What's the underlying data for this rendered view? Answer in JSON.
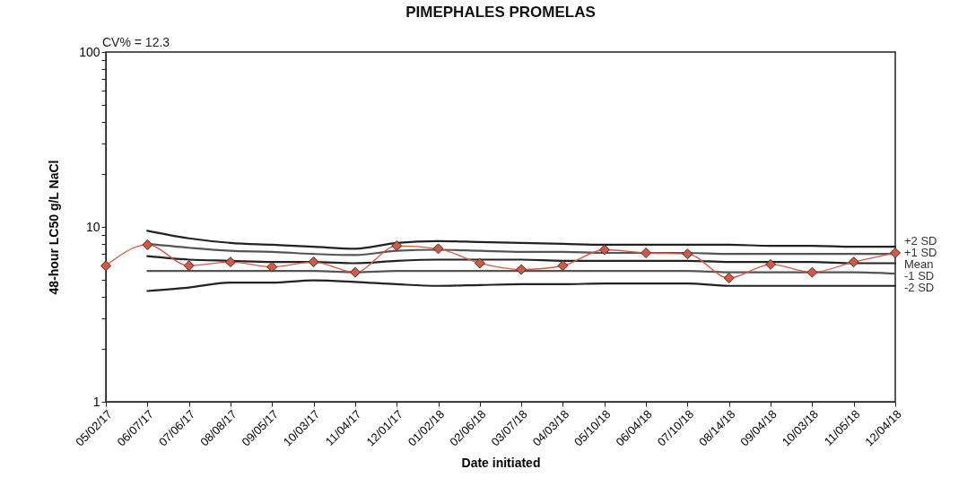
{
  "chart_data": {
    "type": "line",
    "title": "PIMEPHALES PROMELAS",
    "xlabel": "Date initiated",
    "ylabel": "48-hour LC50 g/L NaCl",
    "annotations": [
      "CV% = 12.3"
    ],
    "categories": [
      "05/02/17",
      "06/07/17",
      "07/06/17",
      "08/08/17",
      "09/05/17",
      "10/03/17",
      "11/04/17",
      "12/01/17",
      "01/02/18",
      "02/06/18",
      "03/07/18",
      "04/03/18",
      "05/10/18",
      "06/04/18",
      "07/10/18",
      "08/14/18",
      "09/04/18",
      "10/03/18",
      "11/05/18",
      "12/04/18"
    ],
    "log": "y",
    "ylim": [
      1,
      100
    ],
    "yticks": [
      1,
      {
        "value": 2,
        "label": null
      },
      {
        "value": 3,
        "label": null
      },
      {
        "value": 4,
        "label": null
      },
      {
        "value": 5,
        "label": null
      },
      {
        "value": 6,
        "label": null
      },
      {
        "value": 7,
        "label": null
      },
      {
        "value": 8,
        "label": null
      },
      {
        "value": 9,
        "label": null
      },
      10,
      {
        "value": 20,
        "label": null
      },
      {
        "value": 30,
        "label": null
      },
      {
        "value": 40,
        "label": null
      },
      {
        "value": 50,
        "label": null
      },
      {
        "value": 60,
        "label": null
      },
      {
        "value": 70,
        "label": null
      },
      {
        "value": 80,
        "label": null
      },
      {
        "value": 90,
        "label": null
      },
      100
    ],
    "series": [
      {
        "name": "+2 SD",
        "color": "#222222",
        "marker": "none",
        "values": [
          null,
          9.5,
          8.6,
          8.1,
          7.9,
          7.7,
          7.5,
          8.1,
          8.3,
          8.2,
          8.1,
          8.0,
          7.9,
          7.9,
          7.9,
          7.9,
          7.8,
          7.8,
          7.7,
          7.7
        ]
      },
      {
        "name": "+1 SD",
        "color": "#555555",
        "marker": "none",
        "values": [
          null,
          8.0,
          7.6,
          7.3,
          7.2,
          7.0,
          6.9,
          7.3,
          7.4,
          7.3,
          7.2,
          7.2,
          7.1,
          7.1,
          7.1,
          7.0,
          7.0,
          7.0,
          7.0,
          7.0
        ]
      },
      {
        "name": "Mean",
        "color": "#222222",
        "marker": "none",
        "values": [
          null,
          6.8,
          6.5,
          6.4,
          6.3,
          6.3,
          6.2,
          6.4,
          6.5,
          6.5,
          6.5,
          6.4,
          6.4,
          6.4,
          6.4,
          6.3,
          6.3,
          6.3,
          6.2,
          6.2
        ]
      },
      {
        "name": "-1 SD",
        "color": "#555555",
        "marker": "none",
        "values": [
          null,
          5.6,
          5.6,
          5.6,
          5.6,
          5.6,
          5.5,
          5.6,
          5.6,
          5.6,
          5.6,
          5.6,
          5.6,
          5.6,
          5.6,
          5.5,
          5.5,
          5.5,
          5.5,
          5.4
        ]
      },
      {
        "name": "-2 SD",
        "color": "#222222",
        "marker": "none",
        "values": [
          null,
          4.3,
          4.5,
          4.8,
          4.8,
          4.95,
          4.85,
          4.7,
          4.6,
          4.65,
          4.7,
          4.7,
          4.75,
          4.75,
          4.75,
          4.6,
          4.6,
          4.6,
          4.6,
          4.6
        ]
      },
      {
        "color": "#d9573f",
        "marker": "diamond",
        "values": [
          6.0,
          7.9,
          6.0,
          6.3,
          5.9,
          6.3,
          5.5,
          7.8,
          7.5,
          6.2,
          5.7,
          6.0,
          7.4,
          7.1,
          7.0,
          5.1,
          6.1,
          5.5,
          6.3,
          7.1
        ]
      }
    ]
  }
}
